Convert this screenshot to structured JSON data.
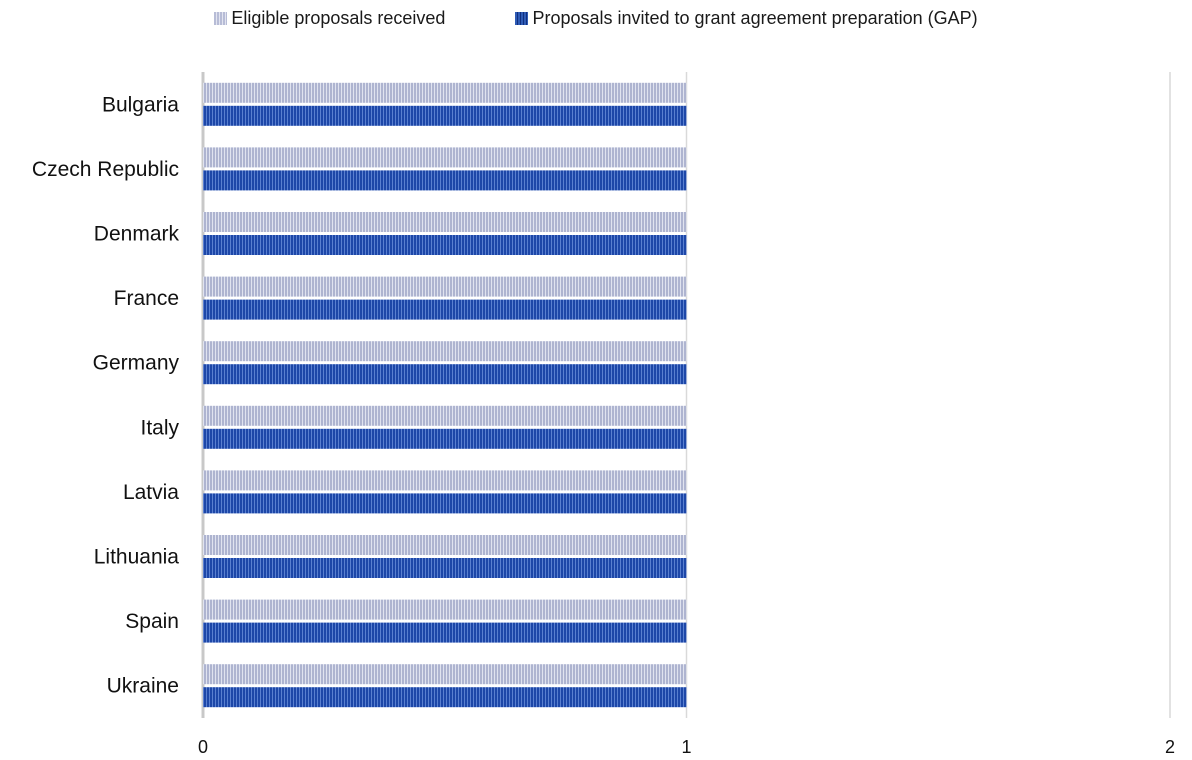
{
  "chart_data": {
    "type": "bar",
    "orientation": "horizontal",
    "categories": [
      "Bulgaria",
      "Czech Republic",
      "Denmark",
      "France",
      "Germany",
      "Italy",
      "Latvia",
      "Lithuania",
      "Spain",
      "Ukraine"
    ],
    "series": [
      {
        "name": "Eligible proposals received",
        "values": [
          1,
          1,
          1,
          1,
          1,
          1,
          1,
          1,
          1,
          1
        ],
        "color": "#b7bcd6",
        "pattern": "vertical-stripes"
      },
      {
        "name": "Proposals invited to grant agreement preparation (GAP)",
        "values": [
          1,
          1,
          1,
          1,
          1,
          1,
          1,
          1,
          1,
          1
        ],
        "color": "#2f5bb5",
        "pattern": "vertical-stripes"
      }
    ],
    "xlim": [
      0,
      2
    ],
    "xticks": [
      "0",
      "1",
      "2"
    ],
    "grid": "vertical",
    "legend_position": "top"
  }
}
